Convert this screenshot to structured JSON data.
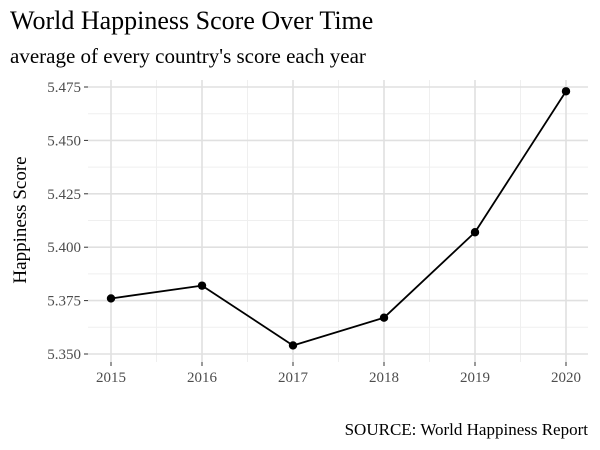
{
  "chart_data": {
    "type": "line",
    "title": "World Happiness Score Over Time",
    "subtitle": "average of every country's score each year",
    "caption": "SOURCE: World Happiness Report",
    "xlabel": "",
    "ylabel": "Happiness Score",
    "x": [
      2015,
      2016,
      2017,
      2018,
      2019,
      2020
    ],
    "series": [
      {
        "values": [
          5.376,
          5.382,
          5.354,
          5.367,
          5.407,
          5.473
        ],
        "color": "#000000"
      }
    ],
    "xlim": [
      2015,
      2020
    ],
    "ylim": [
      5.35,
      5.475
    ],
    "x_ticks": [
      "2015",
      "2016",
      "2017",
      "2018",
      "2019",
      "2020"
    ],
    "y_ticks": [
      "5.350",
      "5.375",
      "5.400",
      "5.425",
      "5.450",
      "5.475"
    ],
    "grid": true,
    "legend": "none",
    "colors": {
      "grid_major": "#e0e0e0",
      "grid_minor": "#efefef",
      "tick_label": "#4d4d4d",
      "line": "#000000"
    }
  }
}
